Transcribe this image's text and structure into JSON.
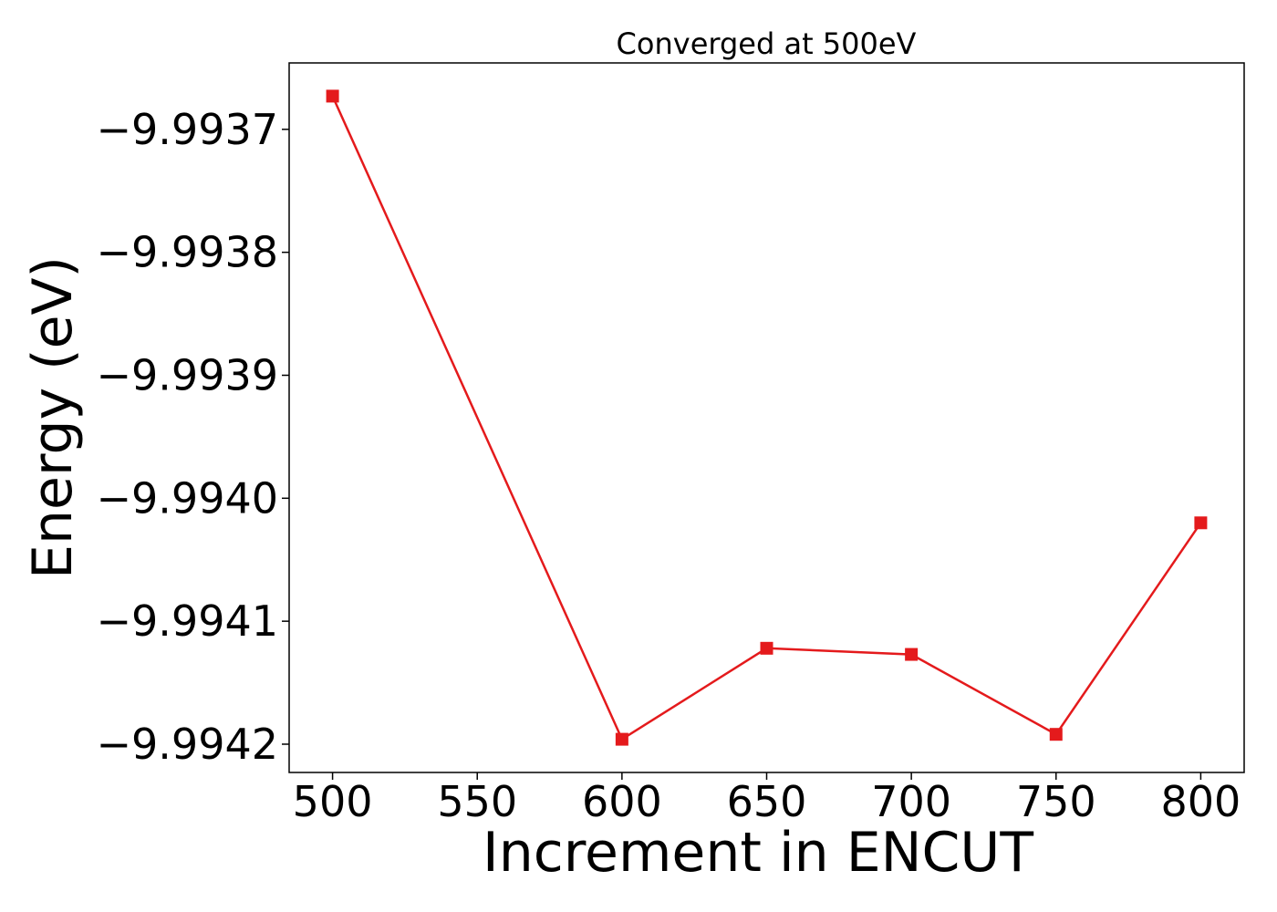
{
  "chart_data": {
    "type": "line",
    "title": "Converged at 500eV",
    "xlabel": "Increment in ENCUT",
    "ylabel": "Energy (eV)",
    "x": [
      500,
      600,
      650,
      700,
      750,
      800
    ],
    "series": [
      {
        "values": [
          -9.993673,
          -9.994196,
          -9.994122,
          -9.994127,
          -9.994192,
          -9.99402
        ],
        "color": "#e41a1c",
        "marker": "square"
      }
    ],
    "xlim": [
      485,
      815
    ],
    "ylim": [
      -9.994223,
      -9.993646
    ],
    "xticks": [
      500,
      550,
      600,
      650,
      700,
      750,
      800
    ],
    "xtick_labels": [
      "500",
      "550",
      "600",
      "650",
      "700",
      "750",
      "800"
    ],
    "yticks": [
      -9.9937,
      -9.9938,
      -9.9939,
      -9.994,
      -9.9941,
      -9.9942
    ],
    "ytick_labels": [
      "−9.9937",
      "−9.9938",
      "−9.9939",
      "−9.9940",
      "−9.9941",
      "−9.9942"
    ],
    "grid": false,
    "legend": "none"
  }
}
